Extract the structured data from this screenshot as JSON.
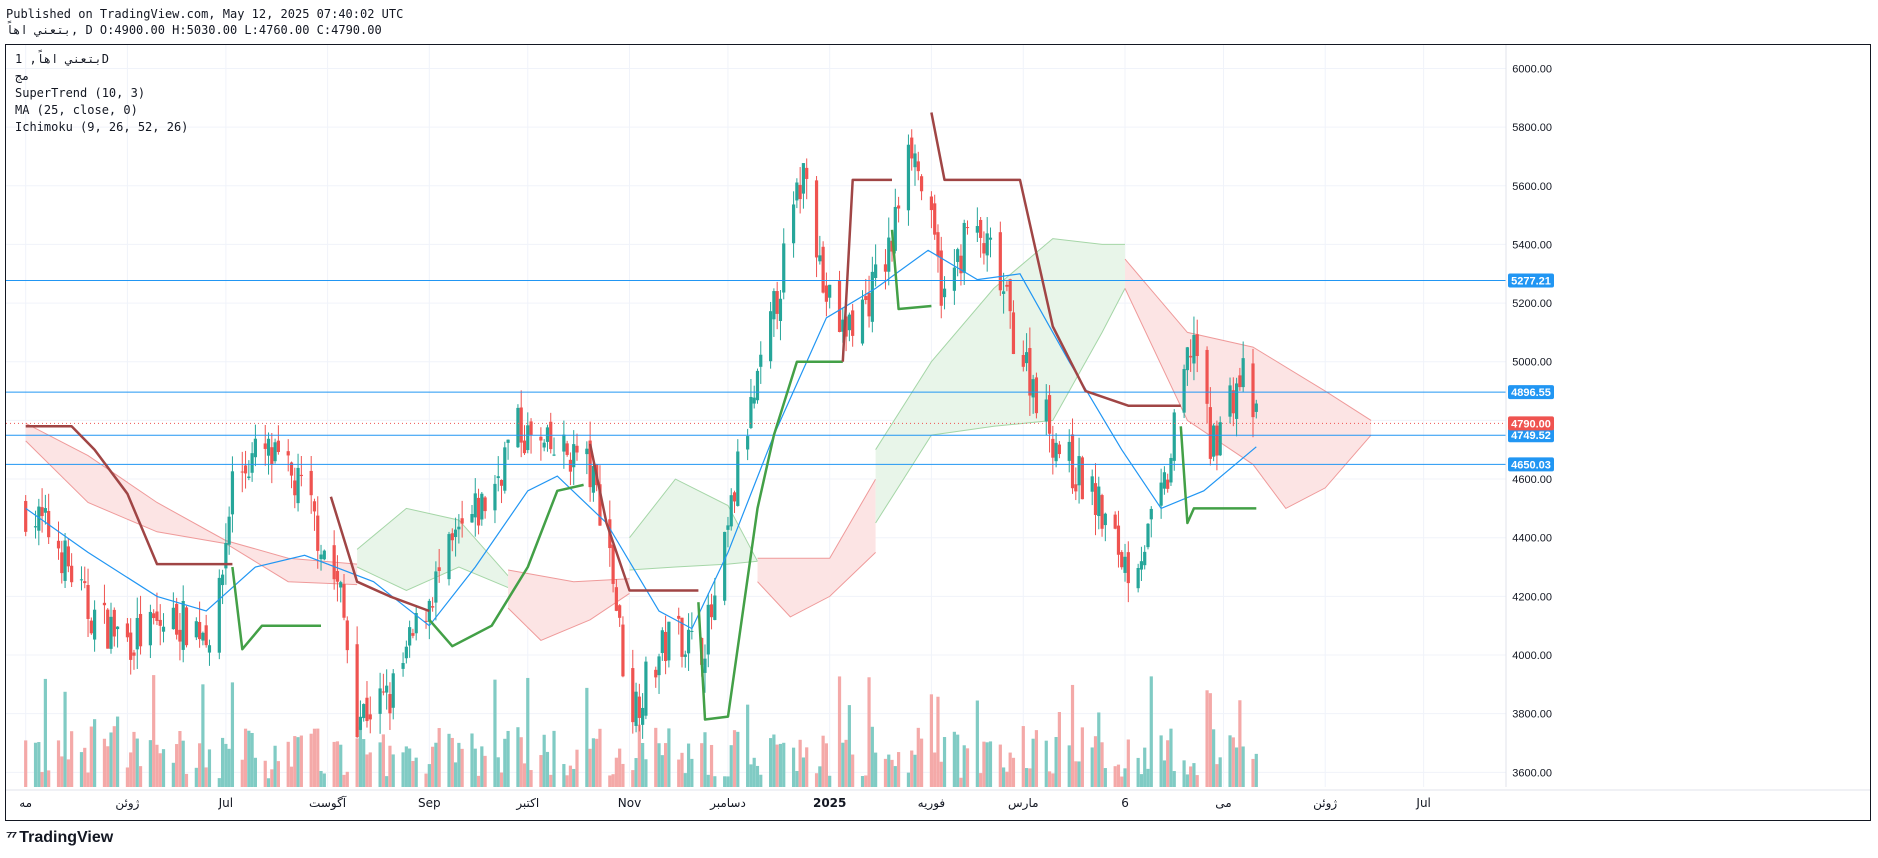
{
  "header": {
    "published": "Published on TradingView.com, May 12, 2025 07:40:02 UTC",
    "ohlc": "بتعني  اهاً, D O:4900.00 H:5030.00 L:4760.00 C:4790.00"
  },
  "legend": {
    "symbol": "بتعني  اهاً, 1D",
    "exchange": "مج",
    "indicators": [
      "SuperTrend (10, 3)",
      "MA (25, close, 0)",
      "Ichimoku (9, 26, 52, 26)"
    ]
  },
  "footer": {
    "brand": "TradingView",
    "logo_icon": "tradingview-logo-icon"
  },
  "colors": {
    "up": "#26a69a",
    "down": "#ef5350",
    "super_up": "#43a047",
    "super_down": "#a04545",
    "ma": "#2196f3",
    "hline": "#2196f3",
    "cloud_bull": "#e8f5e9",
    "cloud_bear": "#fce4e4",
    "last_price": "#ef5350"
  },
  "chart_data": {
    "type": "candlestick",
    "ylim": [
      3550,
      6080
    ],
    "y_ticks": [
      {
        "value": 3600,
        "label": "3600.00"
      },
      {
        "value": 3800,
        "label": "3800.00"
      },
      {
        "value": 4000,
        "label": "4000.00"
      },
      {
        "value": 4200,
        "label": "4200.00"
      },
      {
        "value": 4400,
        "label": "4400.00"
      },
      {
        "value": 4600,
        "label": "4600.00"
      },
      {
        "value": 4800,
        "label": "4800.00"
      },
      {
        "value": 5000,
        "label": "5000.00"
      },
      {
        "value": 5200,
        "label": "5200.00"
      },
      {
        "value": 5400,
        "label": "5400.00"
      },
      {
        "value": 5600,
        "label": "5600.00"
      },
      {
        "value": 5800,
        "label": "5800.00"
      },
      {
        "value": 6000,
        "label": "6000.00"
      }
    ],
    "x_ticks": [
      {
        "label": "مه",
        "date": "2024-05-01"
      },
      {
        "label": "ژوئن",
        "date": "2024-06-01"
      },
      {
        "label": "Jul",
        "date": "2024-07-01"
      },
      {
        "label": "آگوست",
        "date": "2024-08-01"
      },
      {
        "label": "Sep",
        "date": "2024-09-01"
      },
      {
        "label": "اکتبر",
        "date": "2024-10-01"
      },
      {
        "label": "Nov",
        "date": "2024-11-01"
      },
      {
        "label": "دسامبر",
        "date": "2024-12-01"
      },
      {
        "label": "2025",
        "date": "2025-01-01",
        "bold": true
      },
      {
        "label": "فوریه",
        "date": "2025-02-01"
      },
      {
        "label": "مارس",
        "date": "2025-03-01"
      },
      {
        "label": "6",
        "date": "2025-04-01"
      },
      {
        "label": "می",
        "date": "2025-05-01"
      },
      {
        "label": "ژوئن",
        "date": "2025-06-01"
      },
      {
        "label": "Jul",
        "date": "2025-07-01"
      }
    ],
    "horizontal_lines": [
      {
        "value": 5277.21,
        "label": "5277.21"
      },
      {
        "value": 4896.55,
        "label": "4896.55"
      },
      {
        "value": 4749.52,
        "label": "4749.52"
      },
      {
        "value": 4650.03,
        "label": "4650.03"
      }
    ],
    "last_price": {
      "value": 4790,
      "label": "4790.00"
    },
    "close_anchors": [
      [
        "2024-05-01",
        4500
      ],
      [
        "2024-05-10",
        4400
      ],
      [
        "2024-05-20",
        4150
      ],
      [
        "2024-06-01",
        4050
      ],
      [
        "2024-06-15",
        4120
      ],
      [
        "2024-06-28",
        4080
      ],
      [
        "2024-07-03",
        4600
      ],
      [
        "2024-07-12",
        4700
      ],
      [
        "2024-07-25",
        4550
      ],
      [
        "2024-08-05",
        4200
      ],
      [
        "2024-08-10",
        3800
      ],
      [
        "2024-08-20",
        3850
      ],
      [
        "2024-09-01",
        4200
      ],
      [
        "2024-09-10",
        4400
      ],
      [
        "2024-09-20",
        4550
      ],
      [
        "2024-09-27",
        4780
      ],
      [
        "2024-10-05",
        4700
      ],
      [
        "2024-10-18",
        4680
      ],
      [
        "2024-10-25",
        4450
      ],
      [
        "2024-11-01",
        3800
      ],
      [
        "2024-11-08",
        3950
      ],
      [
        "2024-11-15",
        4100
      ],
      [
        "2024-11-22",
        4000
      ],
      [
        "2024-11-28",
        4200
      ],
      [
        "2024-12-05",
        4700
      ],
      [
        "2024-12-12",
        5000
      ],
      [
        "2024-12-20",
        5450
      ],
      [
        "2024-12-25",
        5700
      ],
      [
        "2024-12-30",
        5250
      ],
      [
        "2025-01-05",
        5100
      ],
      [
        "2025-01-12",
        5200
      ],
      [
        "2025-01-20",
        5400
      ],
      [
        "2025-01-25",
        5800
      ],
      [
        "2025-01-31",
        5500
      ],
      [
        "2025-02-05",
        5200
      ],
      [
        "2025-02-12",
        5450
      ],
      [
        "2025-02-20",
        5350
      ],
      [
        "2025-02-26",
        5100
      ],
      [
        "2025-03-05",
        4900
      ],
      [
        "2025-03-10",
        4750
      ],
      [
        "2025-03-15",
        4650
      ],
      [
        "2025-03-22",
        4550
      ],
      [
        "2025-03-28",
        4400
      ],
      [
        "2025-04-02",
        4300
      ],
      [
        "2025-04-08",
        4400
      ],
      [
        "2025-04-14",
        4600
      ],
      [
        "2025-04-18",
        4900
      ],
      [
        "2025-04-22",
        5100
      ],
      [
        "2025-04-27",
        4700
      ],
      [
        "2025-05-02",
        4850
      ],
      [
        "2025-05-07",
        4950
      ],
      [
        "2025-05-11",
        4790
      ]
    ],
    "ma_points": [
      [
        "2024-05-01",
        4500
      ],
      [
        "2024-05-20",
        4350
      ],
      [
        "2024-06-10",
        4200
      ],
      [
        "2024-06-25",
        4150
      ],
      [
        "2024-07-10",
        4300
      ],
      [
        "2024-07-25",
        4340
      ],
      [
        "2024-08-15",
        4250
      ],
      [
        "2024-09-01",
        4100
      ],
      [
        "2024-09-15",
        4300
      ],
      [
        "2024-10-01",
        4560
      ],
      [
        "2024-10-10",
        4610
      ],
      [
        "2024-10-25",
        4450
      ],
      [
        "2024-11-10",
        4150
      ],
      [
        "2024-11-20",
        4090
      ],
      [
        "2024-12-01",
        4350
      ],
      [
        "2024-12-15",
        4750
      ],
      [
        "2024-12-31",
        5150
      ],
      [
        "2025-01-15",
        5250
      ],
      [
        "2025-01-31",
        5380
      ],
      [
        "2025-02-15",
        5280
      ],
      [
        "2025-02-28",
        5300
      ],
      [
        "2025-03-15",
        5000
      ],
      [
        "2025-03-31",
        4700
      ],
      [
        "2025-04-12",
        4500
      ],
      [
        "2025-04-25",
        4560
      ],
      [
        "2025-05-11",
        4710
      ]
    ],
    "supertrend": [
      {
        "trend": "down",
        "points": [
          [
            "2024-05-01",
            4780
          ],
          [
            "2024-05-15",
            4780
          ],
          [
            "2024-05-22",
            4700
          ],
          [
            "2024-06-01",
            4550
          ],
          [
            "2024-06-10",
            4310
          ],
          [
            "2024-07-03",
            4310
          ]
        ]
      },
      {
        "trend": "up",
        "points": [
          [
            "2024-07-03",
            4300
          ],
          [
            "2024-07-06",
            4020
          ],
          [
            "2024-07-12",
            4100
          ],
          [
            "2024-07-30",
            4100
          ]
        ]
      },
      {
        "trend": "down",
        "points": [
          [
            "2024-08-02",
            4540
          ],
          [
            "2024-08-10",
            4250
          ],
          [
            "2024-08-20",
            4200
          ],
          [
            "2024-09-01",
            4150
          ]
        ]
      },
      {
        "trend": "up",
        "points": [
          [
            "2024-09-01",
            4120
          ],
          [
            "2024-09-08",
            4030
          ],
          [
            "2024-09-20",
            4100
          ],
          [
            "2024-10-01",
            4300
          ],
          [
            "2024-10-10",
            4560
          ],
          [
            "2024-10-18",
            4580
          ]
        ]
      },
      {
        "trend": "down",
        "points": [
          [
            "2024-10-20",
            4720
          ],
          [
            "2024-10-25",
            4450
          ],
          [
            "2024-11-01",
            4220
          ],
          [
            "2024-11-22",
            4220
          ]
        ]
      },
      {
        "trend": "up",
        "points": [
          [
            "2024-11-22",
            4180
          ],
          [
            "2024-11-24",
            3780
          ],
          [
            "2024-12-01",
            3790
          ],
          [
            "2024-12-10",
            4500
          ],
          [
            "2024-12-15",
            4750
          ],
          [
            "2024-12-22",
            5000
          ],
          [
            "2025-01-05",
            5000
          ]
        ]
      },
      {
        "trend": "down",
        "points": [
          [
            "2025-01-05",
            5000
          ],
          [
            "2025-01-08",
            5620
          ],
          [
            "2025-01-20",
            5620
          ]
        ]
      },
      {
        "trend": "up",
        "points": [
          [
            "2025-01-20",
            5450
          ],
          [
            "2025-01-22",
            5180
          ],
          [
            "2025-02-01",
            5190
          ]
        ]
      },
      {
        "trend": "down",
        "points": [
          [
            "2025-02-01",
            5850
          ],
          [
            "2025-02-05",
            5620
          ],
          [
            "2025-02-28",
            5620
          ],
          [
            "2025-03-10",
            5120
          ],
          [
            "2025-03-20",
            4900
          ],
          [
            "2025-04-02",
            4850
          ],
          [
            "2025-04-18",
            4850
          ]
        ]
      },
      {
        "trend": "up",
        "points": [
          [
            "2025-04-18",
            4780
          ],
          [
            "2025-04-20",
            4450
          ],
          [
            "2025-04-22",
            4500
          ],
          [
            "2025-05-11",
            4500
          ]
        ]
      }
    ],
    "ichimoku_cloud": [
      {
        "trend": "bear",
        "upper": [
          [
            "2024-05-01",
            4790
          ],
          [
            "2024-05-20",
            4680
          ],
          [
            "2024-06-10",
            4520
          ],
          [
            "2024-07-01",
            4390
          ],
          [
            "2024-07-20",
            4330
          ],
          [
            "2024-08-10",
            4310
          ]
        ],
        "lower": [
          [
            "2024-05-01",
            4730
          ],
          [
            "2024-05-20",
            4520
          ],
          [
            "2024-06-10",
            4420
          ],
          [
            "2024-07-01",
            4380
          ],
          [
            "2024-07-20",
            4250
          ],
          [
            "2024-08-10",
            4240
          ]
        ]
      },
      {
        "trend": "bull",
        "upper": [
          [
            "2024-08-10",
            4360
          ],
          [
            "2024-08-25",
            4500
          ],
          [
            "2024-09-10",
            4460
          ],
          [
            "2024-09-25",
            4270
          ]
        ],
        "lower": [
          [
            "2024-08-10",
            4300
          ],
          [
            "2024-08-25",
            4220
          ],
          [
            "2024-09-10",
            4300
          ],
          [
            "2024-09-25",
            4230
          ]
        ]
      },
      {
        "trend": "bear",
        "upper": [
          [
            "2024-09-25",
            4290
          ],
          [
            "2024-10-15",
            4250
          ],
          [
            "2024-11-01",
            4260
          ]
        ],
        "lower": [
          [
            "2024-09-25",
            4160
          ],
          [
            "2024-10-05",
            4050
          ],
          [
            "2024-10-20",
            4120
          ],
          [
            "2024-11-01",
            4210
          ]
        ]
      },
      {
        "trend": "bull",
        "upper": [
          [
            "2024-11-01",
            4400
          ],
          [
            "2024-11-15",
            4600
          ],
          [
            "2024-12-01",
            4510
          ],
          [
            "2024-12-10",
            4320
          ]
        ],
        "lower": [
          [
            "2024-11-01",
            4290
          ],
          [
            "2024-11-15",
            4300
          ],
          [
            "2024-12-01",
            4310
          ],
          [
            "2024-12-10",
            4320
          ]
        ]
      },
      {
        "trend": "bear",
        "upper": [
          [
            "2024-12-10",
            4330
          ],
          [
            "2025-01-01",
            4330
          ],
          [
            "2025-01-15",
            4600
          ]
        ],
        "lower": [
          [
            "2024-12-10",
            4250
          ],
          [
            "2024-12-20",
            4130
          ],
          [
            "2025-01-01",
            4200
          ],
          [
            "2025-01-15",
            4350
          ]
        ]
      },
      {
        "trend": "bull",
        "upper": [
          [
            "2025-01-15",
            4700
          ],
          [
            "2025-02-01",
            5000
          ],
          [
            "2025-02-20",
            5250
          ],
          [
            "2025-03-10",
            5420
          ],
          [
            "2025-03-25",
            5400
          ],
          [
            "2025-04-01",
            5400
          ]
        ],
        "lower": [
          [
            "2025-01-15",
            4450
          ],
          [
            "2025-02-01",
            4750
          ],
          [
            "2025-02-20",
            4780
          ],
          [
            "2025-03-10",
            4800
          ],
          [
            "2025-03-25",
            5100
          ],
          [
            "2025-04-01",
            5250
          ]
        ]
      },
      {
        "trend": "bear",
        "upper": [
          [
            "2025-04-01",
            5350
          ],
          [
            "2025-04-20",
            5100
          ],
          [
            "2025-05-10",
            5050
          ],
          [
            "2025-06-01",
            4900
          ],
          [
            "2025-06-15",
            4800
          ]
        ],
        "lower": [
          [
            "2025-04-01",
            5250
          ],
          [
            "2025-04-20",
            4800
          ],
          [
            "2025-05-10",
            4650
          ],
          [
            "2025-05-20",
            4500
          ],
          [
            "2025-06-01",
            4570
          ],
          [
            "2025-06-15",
            4750
          ]
        ]
      }
    ],
    "volume_range": [
      0,
      3000
    ]
  }
}
